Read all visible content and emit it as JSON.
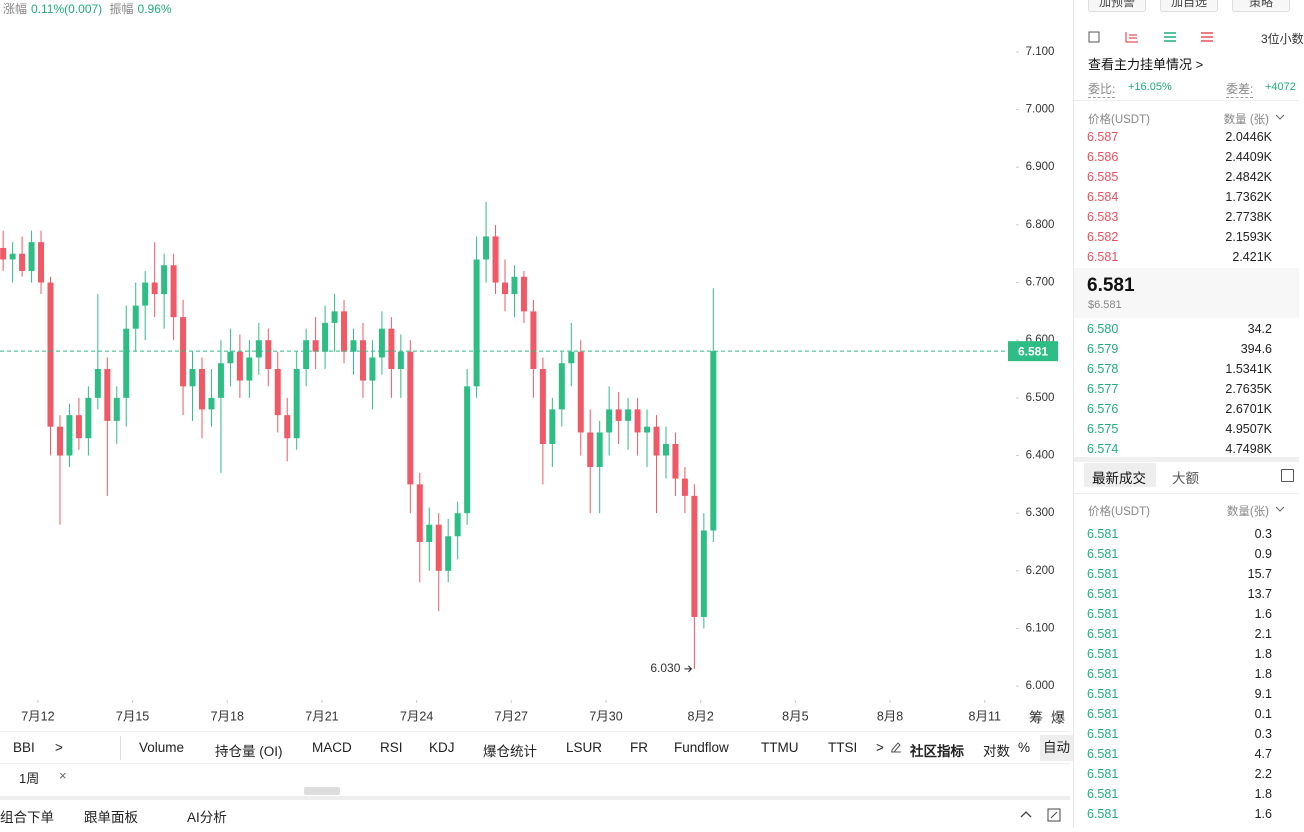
{
  "chart_data": {
    "type": "candlestick",
    "stats": {
      "change_label": "涨幅",
      "change": "0.11%(0.007)",
      "amplitude_label": "振幅",
      "amplitude": "0.96%"
    },
    "x": [
      10.9,
      11.2,
      11.5,
      11.8,
      12.1,
      12.4,
      12.7,
      13,
      13.3,
      13.6,
      13.9,
      14.2,
      14.5,
      14.8,
      15.1,
      15.4,
      15.7,
      16,
      16.3,
      16.6,
      16.9,
      17.2,
      17.5,
      17.8,
      18.1,
      18.4,
      18.7,
      19,
      19.3,
      19.6,
      19.9,
      20.2,
      20.5,
      20.8,
      21.1,
      21.4,
      21.7,
      22,
      22.3,
      22.6,
      22.9,
      23.2,
      23.5,
      23.8,
      24.1,
      24.4,
      24.7,
      25,
      25.3,
      25.6,
      25.9,
      26.2,
      26.5,
      26.8,
      27.1,
      27.4,
      27.7,
      28,
      28.3,
      28.6,
      28.9,
      29.2,
      29.5,
      29.8,
      30.1,
      30.4,
      30.7,
      31,
      31.3,
      31.6,
      31.9,
      32.2,
      32.5,
      32.8,
      33.1,
      33.4
    ],
    "candles": [
      [
        6.76,
        6.79,
        6.72,
        6.74
      ],
      [
        6.74,
        6.77,
        6.7,
        6.75
      ],
      [
        6.75,
        6.78,
        6.71,
        6.72
      ],
      [
        6.72,
        6.79,
        6.7,
        6.77
      ],
      [
        6.77,
        6.79,
        6.68,
        6.7
      ],
      [
        6.7,
        6.71,
        6.4,
        6.45
      ],
      [
        6.45,
        6.47,
        6.28,
        6.4
      ],
      [
        6.4,
        6.49,
        6.38,
        6.47
      ],
      [
        6.47,
        6.5,
        6.41,
        6.43
      ],
      [
        6.43,
        6.52,
        6.4,
        6.5
      ],
      [
        6.5,
        6.68,
        6.48,
        6.55
      ],
      [
        6.55,
        6.57,
        6.33,
        6.46
      ],
      [
        6.46,
        6.52,
        6.42,
        6.5
      ],
      [
        6.5,
        6.66,
        6.45,
        6.62
      ],
      [
        6.62,
        6.7,
        6.58,
        6.66
      ],
      [
        6.66,
        6.72,
        6.6,
        6.7
      ],
      [
        6.7,
        6.77,
        6.64,
        6.68
      ],
      [
        6.68,
        6.75,
        6.62,
        6.73
      ],
      [
        6.73,
        6.75,
        6.6,
        6.64
      ],
      [
        6.64,
        6.67,
        6.47,
        6.52
      ],
      [
        6.52,
        6.58,
        6.46,
        6.55
      ],
      [
        6.55,
        6.57,
        6.43,
        6.48
      ],
      [
        6.48,
        6.55,
        6.45,
        6.5
      ],
      [
        6.5,
        6.6,
        6.37,
        6.56
      ],
      [
        6.56,
        6.62,
        6.52,
        6.58
      ],
      [
        6.58,
        6.61,
        6.5,
        6.53
      ],
      [
        6.53,
        6.6,
        6.5,
        6.57
      ],
      [
        6.57,
        6.63,
        6.54,
        6.6
      ],
      [
        6.6,
        6.62,
        6.52,
        6.55
      ],
      [
        6.55,
        6.58,
        6.44,
        6.47
      ],
      [
        6.47,
        6.5,
        6.39,
        6.43
      ],
      [
        6.43,
        6.58,
        6.41,
        6.55
      ],
      [
        6.55,
        6.62,
        6.52,
        6.6
      ],
      [
        6.6,
        6.64,
        6.55,
        6.58
      ],
      [
        6.58,
        6.66,
        6.55,
        6.63
      ],
      [
        6.63,
        6.68,
        6.58,
        6.65
      ],
      [
        6.65,
        6.67,
        6.56,
        6.58
      ],
      [
        6.58,
        6.62,
        6.54,
        6.6
      ],
      [
        6.6,
        6.63,
        6.5,
        6.53
      ],
      [
        6.53,
        6.6,
        6.48,
        6.57
      ],
      [
        6.57,
        6.65,
        6.54,
        6.62
      ],
      [
        6.62,
        6.64,
        6.5,
        6.55
      ],
      [
        6.55,
        6.61,
        6.5,
        6.58
      ],
      [
        6.58,
        6.6,
        6.3,
        6.35
      ],
      [
        6.35,
        6.37,
        6.18,
        6.25
      ],
      [
        6.25,
        6.31,
        6.2,
        6.28
      ],
      [
        6.28,
        6.3,
        6.13,
        6.2
      ],
      [
        6.2,
        6.29,
        6.18,
        6.26
      ],
      [
        6.26,
        6.32,
        6.22,
        6.3
      ],
      [
        6.3,
        6.55,
        6.28,
        6.52
      ],
      [
        6.52,
        6.78,
        6.5,
        6.74
      ],
      [
        6.74,
        6.84,
        6.7,
        6.78
      ],
      [
        6.78,
        6.8,
        6.68,
        6.7
      ],
      [
        6.7,
        6.74,
        6.65,
        6.68
      ],
      [
        6.68,
        6.73,
        6.64,
        6.71
      ],
      [
        6.71,
        6.72,
        6.63,
        6.65
      ],
      [
        6.65,
        6.67,
        6.5,
        6.55
      ],
      [
        6.55,
        6.57,
        6.35,
        6.42
      ],
      [
        6.42,
        6.5,
        6.38,
        6.48
      ],
      [
        6.48,
        6.58,
        6.45,
        6.56
      ],
      [
        6.56,
        6.63,
        6.52,
        6.58
      ],
      [
        6.58,
        6.6,
        6.4,
        6.44
      ],
      [
        6.44,
        6.48,
        6.3,
        6.38
      ],
      [
        6.38,
        6.46,
        6.3,
        6.44
      ],
      [
        6.44,
        6.52,
        6.4,
        6.48
      ],
      [
        6.48,
        6.51,
        6.42,
        6.46
      ],
      [
        6.46,
        6.5,
        6.41,
        6.48
      ],
      [
        6.48,
        6.5,
        6.4,
        6.44
      ],
      [
        6.44,
        6.48,
        6.38,
        6.45
      ],
      [
        6.45,
        6.47,
        6.3,
        6.4
      ],
      [
        6.4,
        6.45,
        6.36,
        6.42
      ],
      [
        6.42,
        6.44,
        6.33,
        6.36
      ],
      [
        6.36,
        6.38,
        6.3,
        6.33
      ],
      [
        6.33,
        6.35,
        6.03,
        6.12
      ],
      [
        6.12,
        6.3,
        6.1,
        6.27
      ],
      [
        6.27,
        6.69,
        6.25,
        6.581
      ]
    ],
    "xlim": [
      10.8,
      42.8
    ],
    "xticks": [
      {
        "value": 12,
        "label": "7月12"
      },
      {
        "value": 15,
        "label": "7月15"
      },
      {
        "value": 18,
        "label": "7月18"
      },
      {
        "value": 21,
        "label": "7月21"
      },
      {
        "value": 24,
        "label": "7月24"
      },
      {
        "value": 27,
        "label": "7月27"
      },
      {
        "value": 30,
        "label": "7月30"
      },
      {
        "value": 33,
        "label": "8月2"
      },
      {
        "value": 36,
        "label": "8月5"
      },
      {
        "value": 39,
        "label": "8月8"
      },
      {
        "value": 42,
        "label": "8月11"
      }
    ],
    "ylim": [
      5.976,
      7.19
    ],
    "yticks": [
      {
        "value": 6,
        "label": "6.000"
      },
      {
        "value": 6.1,
        "label": "6.100"
      },
      {
        "value": 6.2,
        "label": "6.200"
      },
      {
        "value": 6.3,
        "label": "6.300"
      },
      {
        "value": 6.4,
        "label": "6.400"
      },
      {
        "value": 6.5,
        "label": "6.500"
      },
      {
        "value": 6.6,
        "label": "6.600"
      },
      {
        "value": 6.7,
        "label": "6.700"
      },
      {
        "value": 6.8,
        "label": "6.800"
      },
      {
        "value": 6.9,
        "label": "6.900"
      },
      {
        "value": 7,
        "label": "7.000"
      },
      {
        "value": 7.1,
        "label": "7.100"
      }
    ],
    "last_price": {
      "value": 6.581,
      "label": "6.581"
    },
    "low_annotation": {
      "value": 6.03,
      "label": "6.030"
    },
    "up_color": "#2ebd85",
    "down_color": "#ef5a66"
  },
  "axis_tools": [
    "筹",
    "爆"
  ],
  "indicator_bar": {
    "items": [
      "BBI",
      ">",
      "Volume",
      "持仓量 (OI)",
      "MACD",
      "RSI",
      "KDJ",
      "爆仓统计",
      "LSUR",
      "FR",
      "Fundflow",
      "TTMU",
      "TTSI",
      ">",
      "社区指标",
      "对数",
      "%",
      "自动"
    ]
  },
  "interval_row": {
    "interval": "1周",
    "close": "×"
  },
  "bottom_bar": [
    "组合下单",
    "跟单面板",
    "AI分析"
  ],
  "panel": {
    "buttons": [
      "加预警",
      "加自选",
      "策略"
    ],
    "decimals": "3位小数",
    "depth_link": "查看主力挂单情况 >",
    "ratio_label": "委比:",
    "ratio": "+16.05%",
    "diff_label": "委差:",
    "diff": "+4072",
    "book_header": [
      "价格(USDT)",
      "数量 (张)"
    ],
    "asks": [
      [
        "6.587",
        "2.0446K"
      ],
      [
        "6.586",
        "2.4409K"
      ],
      [
        "6.585",
        "2.4842K"
      ],
      [
        "6.584",
        "1.7362K"
      ],
      [
        "6.583",
        "2.7738K"
      ],
      [
        "6.582",
        "2.1593K"
      ],
      [
        "6.581",
        "2.421K"
      ]
    ],
    "last": "6.581",
    "last_usd": "$6.581",
    "bids": [
      [
        "6.580",
        "34.2"
      ],
      [
        "6.579",
        "394.6"
      ],
      [
        "6.578",
        "1.5341K"
      ],
      [
        "6.577",
        "2.7635K"
      ],
      [
        "6.576",
        "2.6701K"
      ],
      [
        "6.575",
        "4.9507K"
      ],
      [
        "6.574",
        "4.7498K"
      ]
    ],
    "trade_tabs": [
      "最新成交",
      "大额"
    ],
    "trade_header": [
      "价格(USDT)",
      "数量(张)"
    ],
    "trades": [
      [
        "6.581",
        "0.3"
      ],
      [
        "6.581",
        "0.9"
      ],
      [
        "6.581",
        "15.7"
      ],
      [
        "6.581",
        "13.7"
      ],
      [
        "6.581",
        "1.6"
      ],
      [
        "6.581",
        "2.1"
      ],
      [
        "6.581",
        "1.8"
      ],
      [
        "6.581",
        "1.8"
      ],
      [
        "6.581",
        "9.1"
      ],
      [
        "6.581",
        "0.1"
      ],
      [
        "6.581",
        "0.3"
      ],
      [
        "6.581",
        "4.7"
      ],
      [
        "6.581",
        "2.2"
      ],
      [
        "6.581",
        "1.8"
      ],
      [
        "6.581",
        "1.6"
      ]
    ]
  }
}
